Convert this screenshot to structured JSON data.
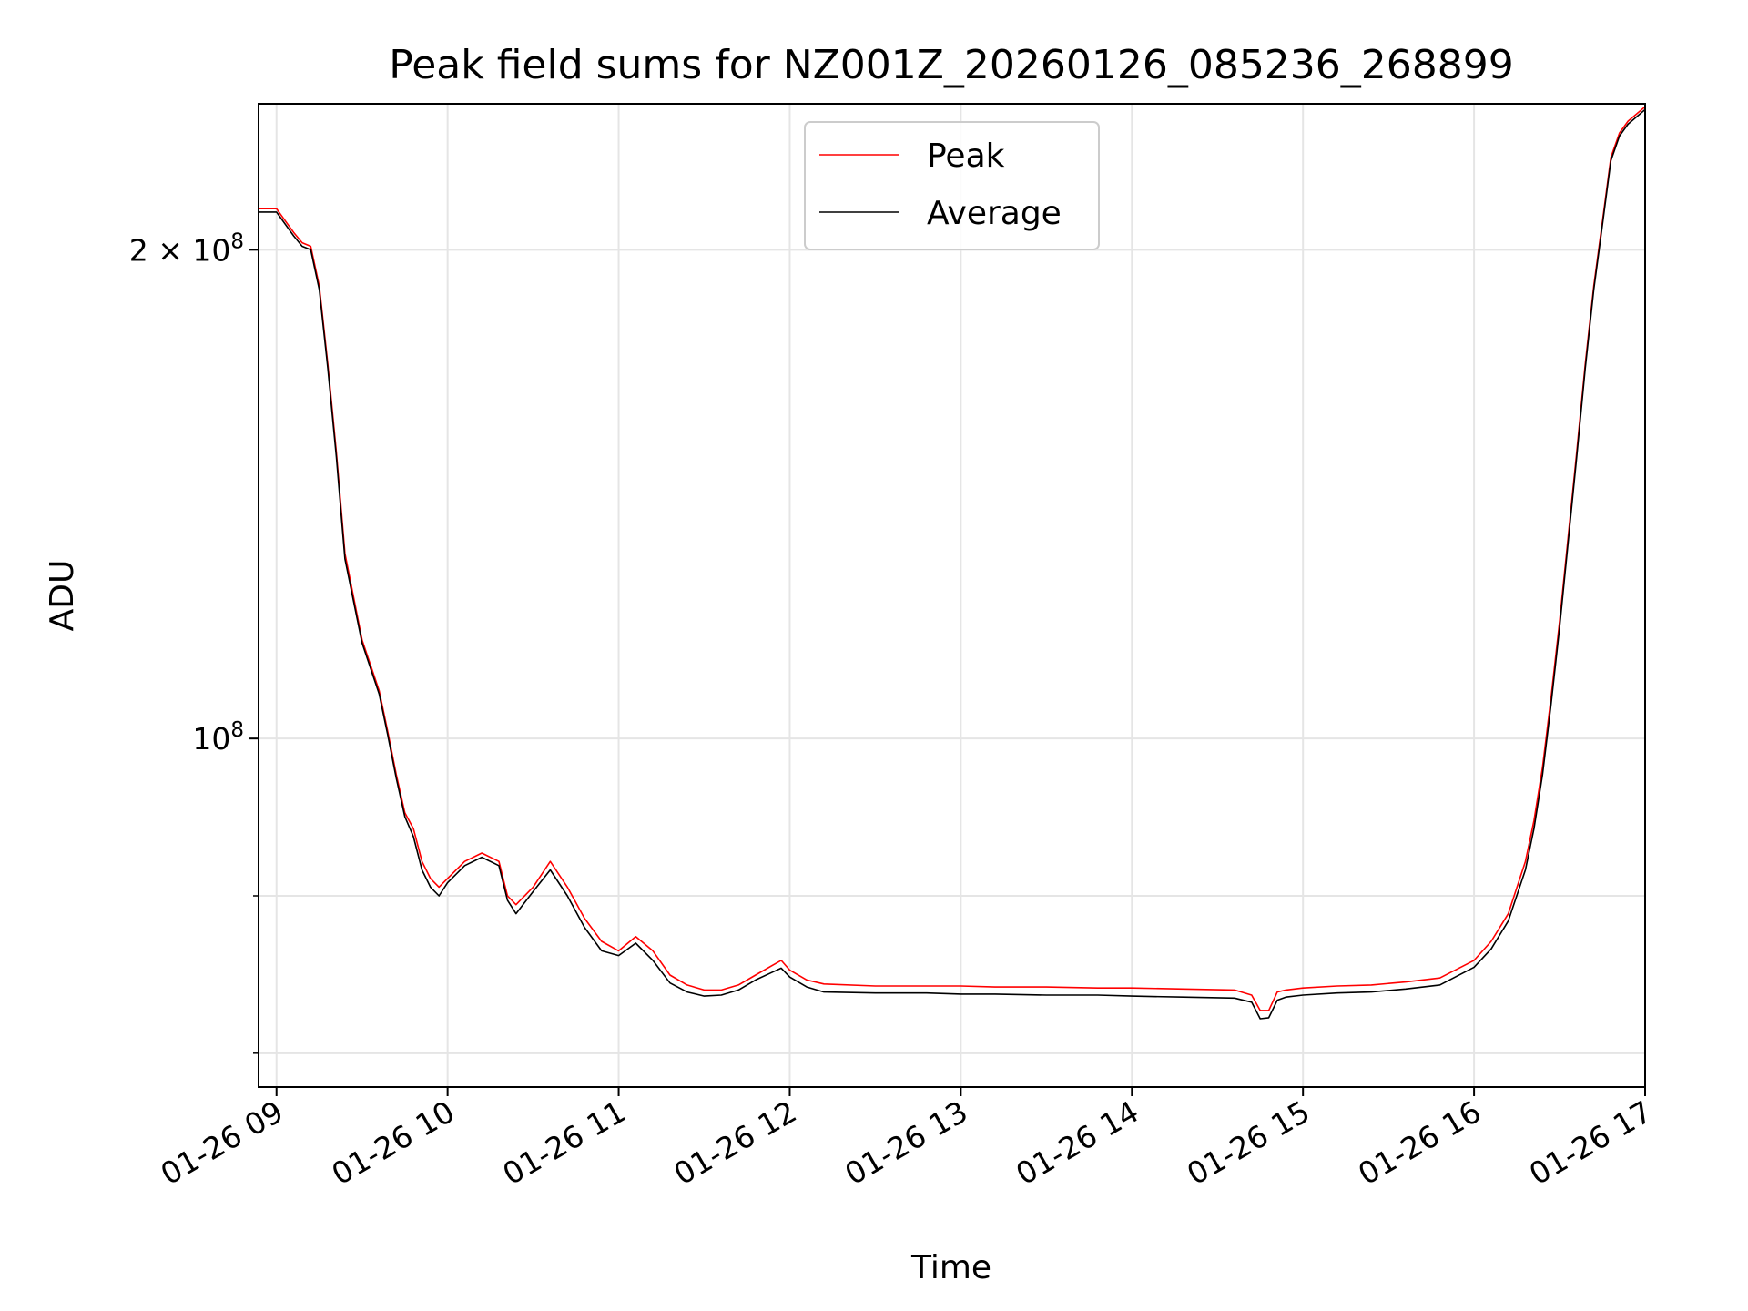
{
  "chart_data": {
    "type": "line",
    "title": "Peak field sums for NZ001Z_20260126_085236_268899",
    "xlabel": "Time",
    "ylabel": "ADU",
    "yscale": "log",
    "ylim": [
      61000000,
      246000000
    ],
    "xlim": [
      8.895,
      17.0
    ],
    "grid": true,
    "legend_position": "upper-center",
    "x_ticks": [
      {
        "value": 9,
        "label": "01-26 09"
      },
      {
        "value": 10,
        "label": "01-26 10"
      },
      {
        "value": 11,
        "label": "01-26 11"
      },
      {
        "value": 12,
        "label": "01-26 12"
      },
      {
        "value": 13,
        "label": "01-26 13"
      },
      {
        "value": 14,
        "label": "01-26 14"
      },
      {
        "value": 15,
        "label": "01-26 15"
      },
      {
        "value": 16,
        "label": "01-26 16"
      },
      {
        "value": 17,
        "label": "01-26 17"
      }
    ],
    "y_ticks_major": [
      {
        "value": 100000000,
        "base": "10",
        "exp": "8",
        "coef": ""
      },
      {
        "value": 200000000,
        "base": "10",
        "exp": "8",
        "coef": "2 × "
      }
    ],
    "y_ticks_minor": [
      64000000,
      80000000
    ],
    "series": [
      {
        "name": "Peak",
        "color": "#ff0000",
        "x": [
          8.9,
          9.0,
          9.1,
          9.15,
          9.2,
          9.25,
          9.3,
          9.35,
          9.4,
          9.5,
          9.6,
          9.65,
          9.7,
          9.75,
          9.8,
          9.85,
          9.9,
          9.95,
          10.0,
          10.1,
          10.2,
          10.3,
          10.35,
          10.4,
          10.5,
          10.6,
          10.7,
          10.8,
          10.9,
          11.0,
          11.1,
          11.2,
          11.3,
          11.4,
          11.5,
          11.6,
          11.7,
          11.8,
          11.9,
          11.95,
          12.0,
          12.1,
          12.2,
          12.5,
          12.8,
          13.0,
          13.2,
          13.5,
          13.8,
          14.0,
          14.3,
          14.6,
          14.7,
          14.75,
          14.8,
          14.85,
          14.9,
          15.0,
          15.2,
          15.4,
          15.6,
          15.8,
          16.0,
          16.1,
          16.2,
          16.3,
          16.35,
          16.4,
          16.45,
          16.5,
          16.55,
          16.6,
          16.65,
          16.7,
          16.75,
          16.8,
          16.85,
          16.9,
          17.0
        ],
        "y": [
          212000000,
          212000000,
          205000000,
          202000000,
          201000000,
          190000000,
          170000000,
          150000000,
          130000000,
          115000000,
          107000000,
          101000000,
          95000000,
          90000000,
          88000000,
          84000000,
          82000000,
          81000000,
          82000000,
          84000000,
          85000000,
          84000000,
          80000000,
          79000000,
          81000000,
          84000000,
          81000000,
          77500000,
          75000000,
          74000000,
          75500000,
          74000000,
          71500000,
          70500000,
          70000000,
          70000000,
          70500000,
          71500000,
          72500000,
          73000000,
          72000000,
          71000000,
          70600000,
          70400000,
          70400000,
          70400000,
          70300000,
          70300000,
          70200000,
          70200000,
          70100000,
          70000000,
          69500000,
          68000000,
          68000000,
          69800000,
          70000000,
          70200000,
          70400000,
          70500000,
          70800000,
          71200000,
          73000000,
          75000000,
          78000000,
          84000000,
          89000000,
          96000000,
          106000000,
          118000000,
          133000000,
          150000000,
          170000000,
          190000000,
          208000000,
          228000000,
          236000000,
          240000000,
          245000000
        ]
      },
      {
        "name": "Average",
        "color": "#000000",
        "x": [
          8.9,
          9.0,
          9.1,
          9.15,
          9.2,
          9.25,
          9.3,
          9.35,
          9.4,
          9.5,
          9.6,
          9.65,
          9.7,
          9.75,
          9.8,
          9.85,
          9.9,
          9.95,
          10.0,
          10.1,
          10.2,
          10.3,
          10.35,
          10.4,
          10.5,
          10.6,
          10.7,
          10.8,
          10.9,
          11.0,
          11.1,
          11.2,
          11.3,
          11.4,
          11.5,
          11.6,
          11.7,
          11.8,
          11.9,
          11.95,
          12.0,
          12.1,
          12.2,
          12.5,
          12.8,
          13.0,
          13.2,
          13.5,
          13.8,
          14.0,
          14.3,
          14.6,
          14.7,
          14.75,
          14.8,
          14.85,
          14.9,
          15.0,
          15.2,
          15.4,
          15.6,
          15.8,
          16.0,
          16.1,
          16.2,
          16.3,
          16.35,
          16.4,
          16.45,
          16.5,
          16.55,
          16.6,
          16.65,
          16.7,
          16.75,
          16.8,
          16.85,
          16.9,
          17.0
        ],
        "y": [
          211000000,
          211000000,
          204000000,
          201000000,
          200000000,
          189000000,
          169000000,
          149000000,
          129000000,
          114500000,
          106500000,
          100500000,
          94500000,
          89500000,
          87000000,
          83000000,
          81000000,
          80000000,
          81500000,
          83500000,
          84500000,
          83500000,
          79500000,
          78000000,
          80500000,
          83000000,
          80000000,
          76500000,
          74000000,
          73500000,
          74800000,
          73000000,
          70700000,
          69800000,
          69400000,
          69500000,
          70000000,
          71000000,
          71800000,
          72200000,
          71300000,
          70300000,
          69800000,
          69700000,
          69700000,
          69600000,
          69600000,
          69500000,
          69500000,
          69400000,
          69300000,
          69200000,
          68800000,
          67200000,
          67300000,
          69000000,
          69300000,
          69500000,
          69700000,
          69800000,
          70100000,
          70500000,
          72300000,
          74200000,
          77200000,
          83000000,
          88000000,
          95000000,
          105000000,
          117000000,
          132000000,
          149000000,
          169000000,
          189000000,
          207000000,
          227000000,
          235000000,
          239000000,
          244000000
        ]
      }
    ]
  }
}
